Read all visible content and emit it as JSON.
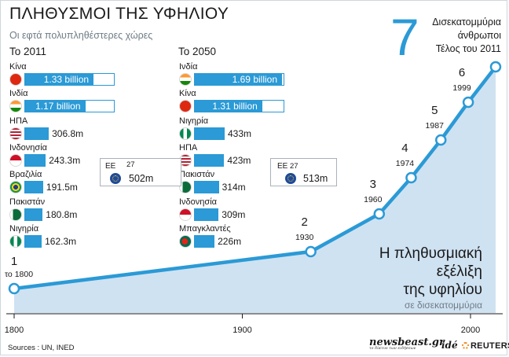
{
  "title": "ΠΛΗΘΥΣΜΟΙ ΤΗΣ ΥΦΗΛΙΟΥ",
  "subtitle": "Οι εφτά πολυπληθέστερες χώρες",
  "colors": {
    "accent": "#2b9ad6",
    "area_fill": "#cfe2f2",
    "marker_fill": "#ffffff"
  },
  "ranking_2011": {
    "label": "Το 2011",
    "items": [
      {
        "country": "Κίνα",
        "value": 1330,
        "value_label": "1.33 billion",
        "flag": "china-flag-icon"
      },
      {
        "country": "Ινδία",
        "value": 1170,
        "value_label": "1.17 billion",
        "flag": "india-flag-icon"
      },
      {
        "country": "ΗΠΑ",
        "value": 306.8,
        "value_label": "306.8m",
        "flag": "usa-flag-icon"
      },
      {
        "country": "Ινδονησία",
        "value": 243.3,
        "value_label": "243.3m",
        "flag": "indonesia-flag-icon"
      },
      {
        "country": "Βραζιλία",
        "value": 191.5,
        "value_label": "191.5m",
        "flag": "brazil-flag-icon"
      },
      {
        "country": "Πακιστάν",
        "value": 180.8,
        "value_label": "180.8m",
        "flag": "pakistan-flag-icon"
      },
      {
        "country": "Νιγηρία",
        "value": 162.3,
        "value_label": "162.3m",
        "flag": "nigeria-flag-icon"
      }
    ],
    "eu": {
      "label": "ΕΕ",
      "count": "27",
      "value_label": "502m",
      "flag": "eu-flag-icon"
    }
  },
  "ranking_2050": {
    "label": "Το 2050",
    "items": [
      {
        "country": "Ινδία",
        "value": 1690,
        "value_label": "1.69 billion",
        "flag": "india-flag-icon"
      },
      {
        "country": "Κίνα",
        "value": 1310,
        "value_label": "1.31 billion",
        "flag": "china-flag-icon"
      },
      {
        "country": "Νιγηρία",
        "value": 433,
        "value_label": "433m",
        "flag": "nigeria-flag-icon"
      },
      {
        "country": "ΗΠΑ",
        "value": 423,
        "value_label": "423m",
        "flag": "usa-flag-icon"
      },
      {
        "country": "Πακιστάν",
        "value": 314,
        "value_label": "314m",
        "flag": "pakistan-flag-icon"
      },
      {
        "country": "Ινδονησία",
        "value": 309,
        "value_label": "309m",
        "flag": "indonesia-flag-icon"
      },
      {
        "country": "Μπαγκλαντές",
        "value": 226,
        "value_label": "226m",
        "flag": "bangladesh-flag-icon"
      }
    ],
    "eu": {
      "label": "ΕΕ",
      "count": "27",
      "value_label": "513m",
      "flag": "eu-flag-icon"
    }
  },
  "headline_number": "7",
  "headline_lines": [
    "Δισεκατομμύρια",
    "άνθρωποι",
    "Τέλος του 2011"
  ],
  "growth_title": [
    "Η πληθυσμιακή",
    "εξέλιξη",
    "της υφηλίου"
  ],
  "growth_unit": "σε δισεκατομμύρια",
  "sources": "Sources : UN, INED",
  "logos": {
    "newsbeast": "newsbeast.gr",
    "newsbeast_tagline": "το δίκτυο των ειδήσεων",
    "ide": "idé",
    "reuters": "REUTERS"
  },
  "chart_data": {
    "type": "area",
    "x": [
      1800,
      1930,
      1960,
      1974,
      1987,
      1999,
      2011
    ],
    "y": [
      1,
      2,
      3,
      4,
      5,
      6,
      7
    ],
    "point_labels": [
      "1",
      "2",
      "3",
      "4",
      "5",
      "6",
      "7"
    ],
    "year_labels": [
      "το 1800",
      "1930",
      "1960",
      "1974",
      "1987",
      "1999",
      ""
    ],
    "x_ticks": [
      1800,
      1900,
      2000
    ],
    "x_tick_labels": [
      "1800",
      "1900",
      "2000"
    ],
    "xlim": [
      1800,
      2011
    ],
    "ylim": [
      0,
      7
    ],
    "grid": false
  }
}
